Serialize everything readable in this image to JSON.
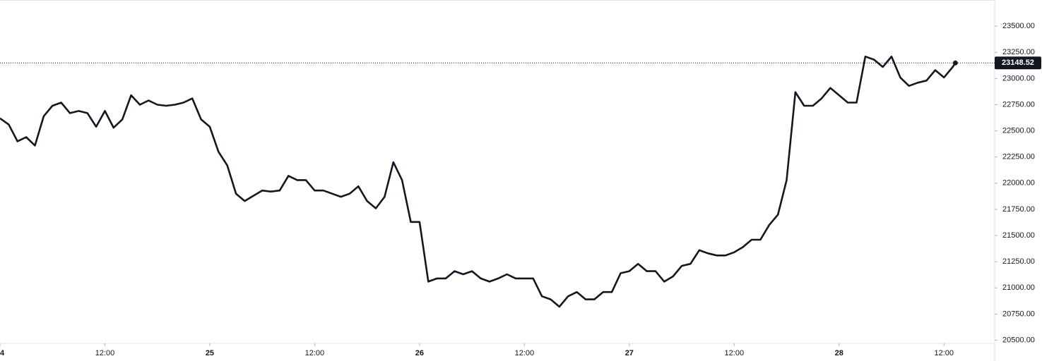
{
  "chart_data": {
    "type": "line",
    "x": [
      0,
      1,
      2,
      3,
      4,
      5,
      6,
      7,
      8,
      9,
      10,
      11,
      12,
      13,
      14,
      15,
      16,
      17,
      18,
      19,
      20,
      21,
      22,
      23,
      24,
      25,
      26,
      27,
      28,
      29,
      30,
      31,
      32,
      33,
      34,
      35,
      36,
      37,
      38,
      39,
      40,
      41,
      42,
      43,
      44,
      45,
      46,
      47,
      48,
      49,
      50,
      51,
      52,
      53,
      54,
      55,
      56,
      57,
      58,
      59,
      60,
      61,
      62,
      63,
      64,
      65,
      66,
      67,
      68,
      69,
      70,
      71,
      72,
      73,
      74,
      75,
      76,
      77,
      78,
      79,
      80,
      81,
      82,
      83,
      84,
      85,
      86,
      87,
      88,
      89,
      90,
      91,
      92,
      93,
      94,
      95,
      96,
      97,
      98,
      99,
      100,
      101,
      102,
      103,
      104,
      105,
      106,
      107,
      108,
      109,
      109.3
    ],
    "series": [
      {
        "color": "#131722",
        "values": [
          22620,
          22560,
          22400,
          22440,
          22360,
          22640,
          22740,
          22770,
          22670,
          22690,
          22670,
          22540,
          22690,
          22530,
          22610,
          22840,
          22750,
          22790,
          22750,
          22740,
          22750,
          22770,
          22810,
          22610,
          22540,
          22300,
          22170,
          21900,
          21830,
          21880,
          21930,
          21920,
          21930,
          22070,
          22030,
          22030,
          21930,
          21930,
          21900,
          21870,
          21900,
          21970,
          21830,
          21760,
          21870,
          22200,
          22030,
          21630,
          21630,
          21060,
          21090,
          21090,
          21160,
          21130,
          21160,
          21090,
          21060,
          21090,
          21130,
          21090,
          21090,
          21090,
          20920,
          20890,
          20820,
          20920,
          20960,
          20890,
          20890,
          20960,
          20960,
          21140,
          21160,
          21230,
          21160,
          21160,
          21060,
          21110,
          21210,
          21230,
          21360,
          21330,
          21310,
          21310,
          21340,
          21390,
          21460,
          21460,
          21600,
          21700,
          22030,
          22870,
          22740,
          22740,
          22810,
          22910,
          22840,
          22770,
          22770,
          23210,
          23180,
          23110,
          23210,
          23010,
          22930,
          22960,
          22980,
          23080,
          23010,
          23110,
          23148.52
        ]
      }
    ],
    "price_line": 23148.52,
    "xlim": [
      0,
      113.8
    ],
    "xticks": [
      {
        "value": 0,
        "label": "4"
      },
      {
        "value": 12,
        "label": "12:00"
      },
      {
        "value": 24,
        "label": "25"
      },
      {
        "value": 36,
        "label": "12:00"
      },
      {
        "value": 48,
        "label": "26"
      },
      {
        "value": 60,
        "label": "12:00"
      },
      {
        "value": 72,
        "label": "27"
      },
      {
        "value": 84,
        "label": "12:00"
      },
      {
        "value": 96,
        "label": "28"
      },
      {
        "value": 108,
        "label": "12:00"
      }
    ],
    "ylim": [
      20470,
      23750
    ],
    "yticks": [
      {
        "value": 20500,
        "label": "20500.00"
      },
      {
        "value": 20750,
        "label": "20750.00"
      },
      {
        "value": 21000,
        "label": "21000.00"
      },
      {
        "value": 21250,
        "label": "21250.00"
      },
      {
        "value": 21500,
        "label": "21500.00"
      },
      {
        "value": 21750,
        "label": "21750.00"
      },
      {
        "value": 22000,
        "label": "22000.00"
      },
      {
        "value": 22250,
        "label": "22250.00"
      },
      {
        "value": 22500,
        "label": "22500.00"
      },
      {
        "value": 22750,
        "label": "22750.00"
      },
      {
        "value": 23000,
        "label": "23000.00"
      },
      {
        "value": 23250,
        "label": "23250.00"
      },
      {
        "value": 23500,
        "label": "23500.00"
      }
    ]
  }
}
